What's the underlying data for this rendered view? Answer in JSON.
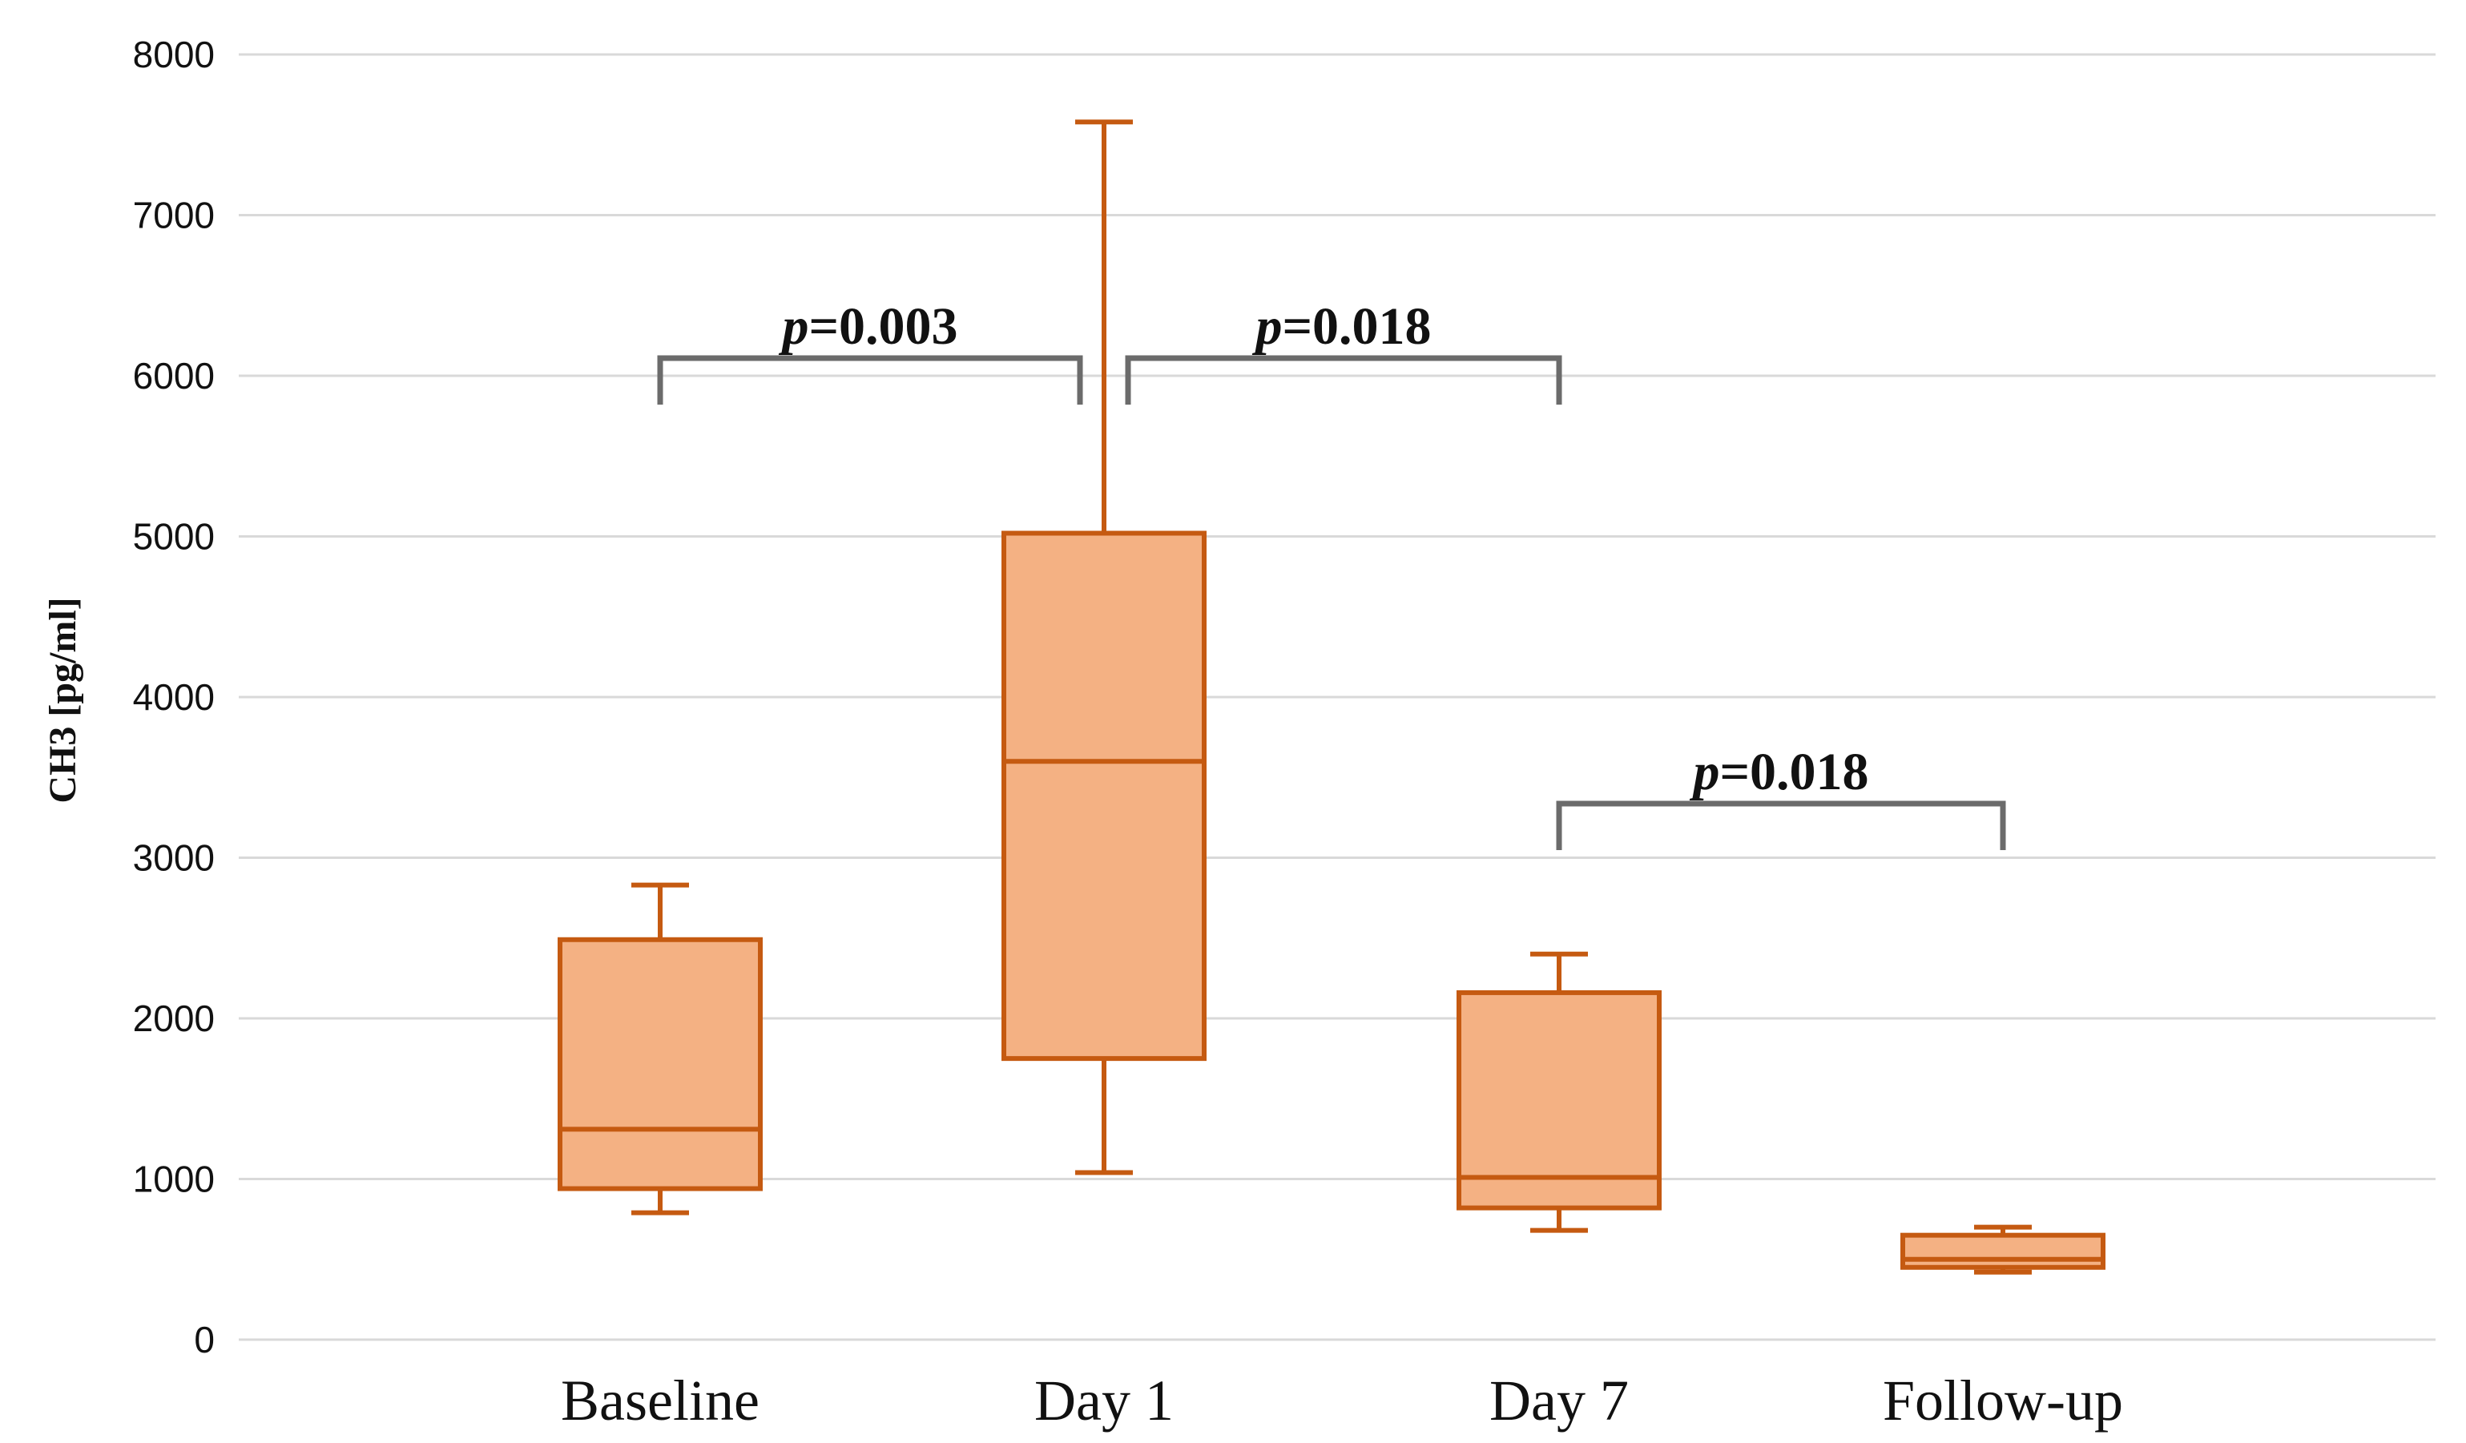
{
  "chart_data": {
    "type": "boxplot",
    "title": "",
    "xlabel": "",
    "ylabel": "CH3 [pg/ml]",
    "ylim": [
      0,
      8000
    ],
    "yticks": [
      0,
      1000,
      2000,
      3000,
      4000,
      5000,
      6000,
      7000,
      8000
    ],
    "grid": true,
    "categories": [
      "Baseline",
      "Day 1",
      "Day 7",
      "Follow-up"
    ],
    "boxes": [
      {
        "name": "Baseline",
        "min": 790,
        "q1": 940,
        "median": 1310,
        "q3": 2490,
        "max": 2830
      },
      {
        "name": "Day 1",
        "min": 1040,
        "q1": 1750,
        "median": 3600,
        "q3": 5020,
        "max": 7580
      },
      {
        "name": "Day 7",
        "min": 680,
        "q1": 820,
        "median": 1010,
        "q3": 2160,
        "max": 2400
      },
      {
        "name": "Follow-up",
        "min": 420,
        "q1": 450,
        "median": 500,
        "q3": 650,
        "max": 700
      }
    ],
    "annotations": [
      {
        "from": "Baseline",
        "to": "Day 1",
        "p_label": "p",
        "p_value": "=0.003"
      },
      {
        "from": "Day 1",
        "to": "Day 7",
        "p_label": "p",
        "p_value": "=0.018"
      },
      {
        "from": "Day 7",
        "to": "Follow-up",
        "p_label": "p",
        "p_value": "=0.018"
      }
    ],
    "colors": {
      "box_fill": "#F4B183",
      "box_stroke": "#C55A11",
      "bracket": "#6b6b6b",
      "grid": "#d9d9d9"
    }
  }
}
